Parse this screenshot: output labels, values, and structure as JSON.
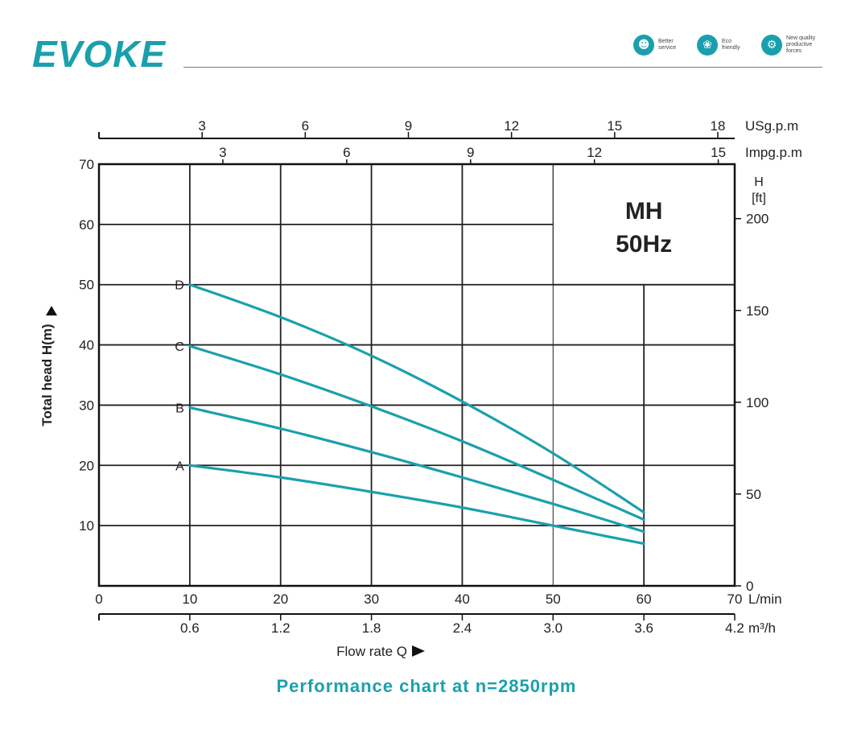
{
  "brand": {
    "logo_text": "EVOKE",
    "badges": [
      {
        "icon": "support-person-icon",
        "label": "Better\nservice"
      },
      {
        "icon": "leaf-globe-icon",
        "label": "Eco\nfriendly"
      },
      {
        "icon": "gear-icon",
        "label": "New quality\nproductive\nforces"
      }
    ],
    "accent_color": "#1aa0ad"
  },
  "footer_title": "Performance chart at n=2850rpm",
  "chart_data": {
    "type": "line",
    "model_box": {
      "line1": "MH",
      "line2": "50Hz"
    },
    "xlabel": "Flow rate Q",
    "ylabel": "Total head H(m)",
    "x_units": {
      "lmin": "L/min",
      "m3h": "m³/h",
      "usgpm": "USg.p.m",
      "impgpm": "Impg.p.m"
    },
    "right_units": {
      "h": "H",
      "ft": "[ft]"
    },
    "xlim": [
      0,
      70
    ],
    "ylim": [
      0,
      70
    ],
    "x_ticks_lmin": [
      0,
      10,
      20,
      30,
      40,
      50,
      60,
      70
    ],
    "y_ticks_m": [
      10,
      20,
      30,
      40,
      50,
      60,
      70
    ],
    "m3h_ticks": [
      {
        "label": "0.6",
        "value": 0.6
      },
      {
        "label": "1.2",
        "value": 1.2
      },
      {
        "label": "1.8",
        "value": 1.8
      },
      {
        "label": "2.4",
        "value": 2.4
      },
      {
        "label": "3.0",
        "value": 3.0
      },
      {
        "label": "3.6",
        "value": 3.6
      },
      {
        "label": "4.2",
        "value": 4.2
      }
    ],
    "usgpm_ticks": [
      3,
      6,
      9,
      12,
      15,
      18
    ],
    "impgpm_ticks": [
      3,
      6,
      9,
      12,
      15
    ],
    "ft_ticks": [
      0,
      50,
      100,
      150,
      200
    ],
    "series_color": "#1aa0ad",
    "series": [
      {
        "name": "A",
        "points": [
          [
            10,
            20
          ],
          [
            20,
            18
          ],
          [
            30,
            15.6
          ],
          [
            40,
            13
          ],
          [
            50,
            10
          ],
          [
            60,
            7
          ]
        ]
      },
      {
        "name": "B",
        "points": [
          [
            10,
            29.6
          ],
          [
            20,
            26.1
          ],
          [
            30,
            22.2
          ],
          [
            40,
            18
          ],
          [
            50,
            13.6
          ],
          [
            60,
            9
          ]
        ]
      },
      {
        "name": "C",
        "points": [
          [
            10,
            39.8
          ],
          [
            20,
            35.1
          ],
          [
            30,
            29.8
          ],
          [
            40,
            24
          ],
          [
            50,
            17.6
          ],
          [
            60,
            11
          ]
        ]
      },
      {
        "name": "D",
        "points": [
          [
            10,
            50
          ],
          [
            20,
            44.6
          ],
          [
            30,
            38.2
          ],
          [
            40,
            30.6
          ],
          [
            50,
            22
          ],
          [
            60,
            12.2
          ]
        ]
      }
    ]
  }
}
